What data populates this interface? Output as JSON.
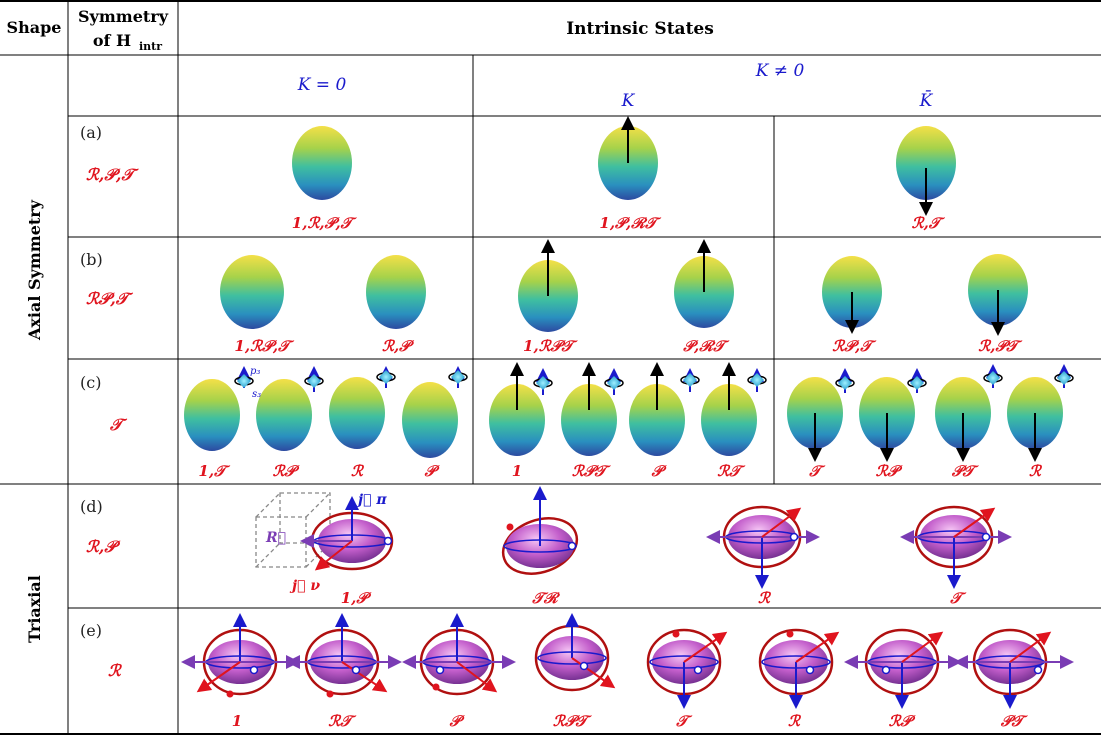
{
  "header": {
    "shape": "Shape",
    "symmetry_line1": "Symmetry",
    "symmetry_line2": "of H",
    "symmetry_sub": "intr",
    "intrinsic": "Intrinsic States"
  },
  "subheader": {
    "k0": "K = 0",
    "kne0": "K ≠ 0",
    "k": "K",
    "kbar": "K̄"
  },
  "groups": {
    "axial": "Axial Symmetry",
    "triaxial": "Triaxial"
  },
  "rows": [
    {
      "letter": "(a)",
      "symmetry": "ℛ,𝒫,𝒯",
      "labels": [
        "1,ℛ,𝒫,𝒯",
        "1,𝒫,ℛ𝒯",
        "ℛ,𝒯"
      ]
    },
    {
      "letter": "(b)",
      "symmetry": "ℛ𝒫,𝒯",
      "labels": [
        "1,ℛ𝒫,𝒯",
        "ℛ,𝒫",
        "1,ℛ𝒫𝒯",
        "𝒫,ℛ𝒯",
        "ℛ𝒫,𝒯",
        "ℛ,𝒫𝒯"
      ]
    },
    {
      "letter": "(c)",
      "symmetry": "𝒯",
      "labels": [
        "1,𝒯",
        "ℛ𝒫",
        "ℛ",
        "𝒫",
        "1",
        "ℛ𝒫𝒯",
        "𝒫",
        "ℛ𝒯",
        "𝒯",
        "ℛ𝒫",
        "𝒫𝒯",
        "ℛ"
      ]
    },
    {
      "letter": "(d)",
      "symmetry": "ℛ,𝒫",
      "labels": [
        "1,𝒫",
        "𝒯ℛ",
        "ℛ",
        "𝒯"
      ]
    },
    {
      "letter": "(e)",
      "symmetry": "ℛ",
      "labels": [
        "1",
        "ℛ𝒯",
        "𝒫",
        "ℛ𝒫𝒯",
        "𝒯",
        "ℛ",
        "ℛ𝒫",
        "𝒫𝒯"
      ]
    }
  ],
  "annotations": {
    "p3": "p₃",
    "s3": "s₃",
    "jpi": "j⃗ π",
    "jnu": "j⃗ ν",
    "R": "R⃗"
  },
  "colors": {
    "red": "#e0141e",
    "blue": "#1a1acc",
    "purple": "#7a3cb4"
  }
}
